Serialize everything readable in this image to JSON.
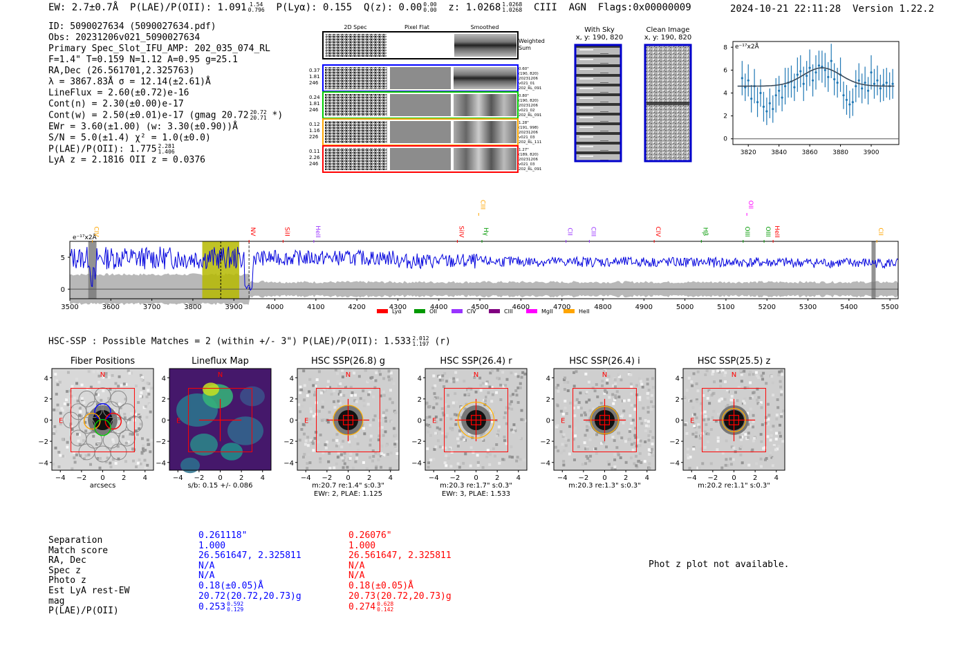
{
  "header": {
    "ew": "EW: 2.7±0.7Å",
    "plae_label": "P(LAE)/P(OII): 1.091",
    "plae_hi": "1.54",
    "plae_lo": "0.796",
    "plya": "P(Lyα): 0.155",
    "qz_label": "Q(z): 0.00",
    "qz_hi": "0.00",
    "qz_lo": "0.00",
    "z_label": "z: 1.0268",
    "z_hi": "1.0268",
    "z_lo": "1.0268",
    "line": "CIII",
    "agn": "AGN",
    "flags": "Flags:0x00000009",
    "datetime": "2024-10-21 22:11:28",
    "version": "Version 1.22.2"
  },
  "info": {
    "id": "ID: 5090027634 (5090027634.pdf)",
    "obs": "Obs: 20231206v021_5090027634",
    "primary": "Primary Spec_Slot_IFU_AMP: 202_035_074_RL",
    "params": "F=1.4\"  T=0.159  N=1.12  A=0.95  g=25.1",
    "radec": "RA,Dec (26.561701,2.325763)",
    "lambda": "λ = 3867.83Å  σ = 12.14(±2.61)Å",
    "lineflux": "LineFlux = 2.60(±0.72)e-16",
    "contn": "Cont(n) = 2.30(±0.00)e-17",
    "contw": "Cont(w) = 2.50(±0.01)e-17 (gmag 20.72",
    "contw_hi": "20.72",
    "contw_lo": "20.71",
    "contw_end": "*)",
    "ewr": "EWr = 3.60(±1.00) (w: 3.30(±0.90))Å",
    "sn": "S/N = 5.0(±1.4)  χ² = 1.0(±0.0)",
    "plae": "P(LAE)/P(OII): 1.775",
    "plae_hi": "2.281",
    "plae_lo": "1.406",
    "lyaz": "LyA z = 2.1816  OII z = 0.0376"
  },
  "cutouts": {
    "col_labels": [
      "2D Spec",
      "Pixel Flat",
      "Smoothed"
    ],
    "weighted_sum": [
      "Weighted",
      "Sum"
    ],
    "rows": [
      {
        "left": [
          "0.37",
          "1.81",
          "246"
        ],
        "right": [
          "0.60\"",
          "(190, 820)",
          "20231206",
          "v021_01",
          "202_RL_091"
        ],
        "color": "#0000ff"
      },
      {
        "left": [
          "0.24",
          "1.81",
          "246"
        ],
        "right": [
          "0.80\"",
          "(190, 820)",
          "20231206",
          "v021_02",
          "202_RL_091"
        ],
        "color": "#00cc00"
      },
      {
        "left": [
          "0.12",
          "1.16",
          "226"
        ],
        "right": [
          "1.28\"",
          "(191, 998)",
          "20231206",
          "v021_03",
          "202_RL_111"
        ],
        "color": "#ffa500"
      },
      {
        "left": [
          "0.11",
          "2.26",
          "246"
        ],
        "right": [
          "1.27\"",
          "(189, 820)",
          "20231206",
          "v021_03",
          "202_RL_091"
        ],
        "color": "#ff0000"
      }
    ]
  },
  "sky": {
    "with_sky": "With Sky",
    "with_sky_xy": "x, y: 190, 820",
    "clean": "Clean Image",
    "clean_xy": "x, y: 190, 820"
  },
  "zoom_plot": {
    "units": "e⁻¹⁷x2Å",
    "xticks": [
      "3820",
      "3840",
      "3860",
      "3880",
      "3900"
    ],
    "yticks": [
      "0",
      "2",
      "4",
      "6",
      "8"
    ]
  },
  "chart_data": {
    "type": "line",
    "title": "",
    "ylabel": "e⁻¹⁷x2Å",
    "xlim": [
      3500,
      5520
    ],
    "ylim": [
      -1.5,
      7.5
    ],
    "xticks": [
      "3500",
      "3600",
      "3700",
      "3800",
      "3900",
      "4000",
      "4100",
      "4200",
      "4300",
      "4400",
      "4500",
      "4600",
      "4700",
      "4800",
      "4900",
      "5000",
      "5100",
      "5200",
      "5300",
      "5400",
      "5500"
    ],
    "yticks": [
      "0",
      "5"
    ],
    "highlight_range": [
      3823,
      3913
    ],
    "line_center": 3868,
    "dashed_marker": 3937,
    "gray_bands": [
      [
        3545,
        3565
      ],
      [
        5455,
        5465
      ]
    ],
    "line_labels": [
      {
        "name": "CIV",
        "x": 3555,
        "color": "#ffa500",
        "tier": 0
      },
      {
        "name": "NV",
        "x": 3937,
        "color": "#ff0000",
        "tier": 0
      },
      {
        "name": "SiII",
        "x": 4020,
        "color": "#ff0000",
        "tier": 0
      },
      {
        "name": "HeII",
        "x": 4095,
        "color": "#9933ff",
        "tier": 0
      },
      {
        "name": "SiIV",
        "x": 4445,
        "color": "#ff0000",
        "tier": 0
      },
      {
        "name": "CIII",
        "x": 4497,
        "color": "#ffa500",
        "tier": 1
      },
      {
        "name": "Hγ",
        "x": 4505,
        "color": "#009900",
        "tier": 0
      },
      {
        "name": "CII",
        "x": 4710,
        "color": "#9933ff",
        "tier": 0
      },
      {
        "name": "CIII",
        "x": 4767,
        "color": "#9933ff",
        "tier": 0
      },
      {
        "name": "CIV",
        "x": 4925,
        "color": "#ff0000",
        "tier": 0
      },
      {
        "name": "Hβ",
        "x": 5040,
        "color": "#009900",
        "tier": 0
      },
      {
        "name": "OII",
        "x": 5151,
        "color": "#ff00ff",
        "tier": 1
      },
      {
        "name": "OIII",
        "x": 5142,
        "color": "#009900",
        "tier": 0
      },
      {
        "name": "OIII",
        "x": 5193,
        "color": "#009900",
        "tier": 0
      },
      {
        "name": "HeII",
        "x": 5215,
        "color": "#ff0000",
        "tier": 0
      },
      {
        "name": "CII",
        "x": 5468,
        "color": "#ffa500",
        "tier": 0
      }
    ],
    "legend": [
      {
        "name": "Lyα",
        "color": "#ff0000"
      },
      {
        "name": "OII",
        "color": "#009900"
      },
      {
        "name": "CIV",
        "color": "#9933ff"
      },
      {
        "name": "CIII",
        "color": "#800080"
      },
      {
        "name": "MgII",
        "color": "#ff00ff"
      },
      {
        "name": "HeII",
        "color": "#ffa500"
      }
    ],
    "zoom": {
      "x": [
        3816,
        3818,
        3820,
        3822,
        3824,
        3826,
        3828,
        3830,
        3832,
        3834,
        3836,
        3838,
        3840,
        3842,
        3844,
        3846,
        3848,
        3850,
        3852,
        3854,
        3856,
        3858,
        3860,
        3862,
        3864,
        3866,
        3868,
        3870,
        3872,
        3874,
        3876,
        3878,
        3880,
        3882,
        3884,
        3886,
        3888,
        3890,
        3892,
        3894,
        3896,
        3898,
        3900,
        3902,
        3904,
        3906,
        3908,
        3910,
        3912,
        3914
      ],
      "y": [
        5.3,
        4.5,
        5.1,
        3.5,
        4.6,
        3.2,
        4.0,
        2.8,
        2.4,
        3.1,
        2.6,
        3.8,
        4.2,
        3.6,
        4.6,
        4.9,
        5.0,
        4.5,
        5.6,
        5.9,
        4.8,
        5.5,
        6.2,
        5.1,
        5.8,
        6.4,
        6.3,
        6.0,
        5.4,
        6.8,
        5.2,
        4.9,
        5.6,
        3.8,
        3.4,
        3.0,
        3.2,
        4.6,
        5.1,
        4.4,
        4.9,
        4.2,
        5.8,
        4.8,
        5.1,
        4.4,
        4.7,
        4.9,
        4.6,
        4.8
      ],
      "err": [
        1.5,
        1.2,
        1.4,
        1.2,
        1.5,
        1.3,
        1.2,
        1.3,
        1.2,
        1.3,
        1.2,
        1.5,
        1.3,
        1.2,
        1.6,
        1.3,
        1.4,
        1.2,
        1.5,
        1.4,
        1.5,
        1.3,
        1.6,
        1.4,
        1.5,
        1.3,
        1.4,
        1.5,
        1.3,
        1.5,
        1.4,
        1.3,
        1.5,
        1.2,
        1.3,
        1.2,
        1.2,
        1.4,
        1.5,
        1.3,
        1.4,
        1.2,
        1.5,
        1.3,
        1.3,
        1.2,
        1.4,
        1.3,
        1.2,
        1.3
      ],
      "model_center": 3868,
      "model_sigma": 12.14,
      "model_amp": 1.6,
      "model_cont": 4.6,
      "xlim": [
        3810,
        3918
      ],
      "ylim": [
        -0.5,
        8.5
      ]
    }
  },
  "imaging": {
    "summary": "HSC-SSP : Possible Matches = 2 (within +/- 3\")  P(LAE)/P(OII): 1.533",
    "summary_hi": "2.012",
    "summary_lo": "1.197",
    "summary_end": "(r)",
    "ticks": [
      "-4",
      "-2",
      "0",
      "2",
      "4"
    ],
    "yticks": [
      "4",
      "2",
      "0",
      "−2",
      "−4"
    ],
    "n_label": "N",
    "e_label": "E",
    "panels": [
      {
        "title": "Fiber Positions",
        "captions": [
          "arcsecs"
        ]
      },
      {
        "title": "Lineflux Map",
        "captions": [
          "s/b: 0.15 +/- 0.086"
        ]
      },
      {
        "title": "HSC SSP(26.8) g",
        "captions": [
          "m:20.7  re:1.4\"  s:0.3\"",
          "EWr: 2, PLAE: 1.125"
        ]
      },
      {
        "title": "HSC SSP(26.4) r",
        "captions": [
          "m:20.3  re:1.7\"  s:0.3\"",
          "EWr: 3, PLAE: 1.533"
        ]
      },
      {
        "title": "HSC SSP(26.4) i",
        "captions": [
          "m:20.3  re:1.3\"  s:0.3\""
        ]
      },
      {
        "title": "HSC SSP(25.5) z",
        "captions": [
          "m:20.2  re:1.1\"  s:0.3\""
        ]
      }
    ]
  },
  "matches": {
    "labels": [
      "Separation",
      "Match score",
      "RA, Dec",
      "Spec z",
      "Photo z",
      "Est LyA rest-EW",
      "mag",
      "P(LAE)/P(OII)"
    ],
    "col1": [
      "0.261118\"",
      "1.000",
      "26.561647, 2.325811",
      "N/A",
      "N/A",
      "0.18(±0.05)Å",
      "20.72(20.72,20.73)g",
      "0.253"
    ],
    "col1_plae_hi": "0.592",
    "col1_plae_lo": "0.129",
    "col2": [
      "0.26076\"",
      "1.000",
      "26.561647, 2.325811",
      "N/A",
      "N/A",
      "0.18(±0.05)Å",
      "20.73(20.72,20.73)g",
      "0.274"
    ],
    "col2_plae_hi": "0.628",
    "col2_plae_lo": "0.142",
    "photz_note": "Phot z plot not available."
  }
}
